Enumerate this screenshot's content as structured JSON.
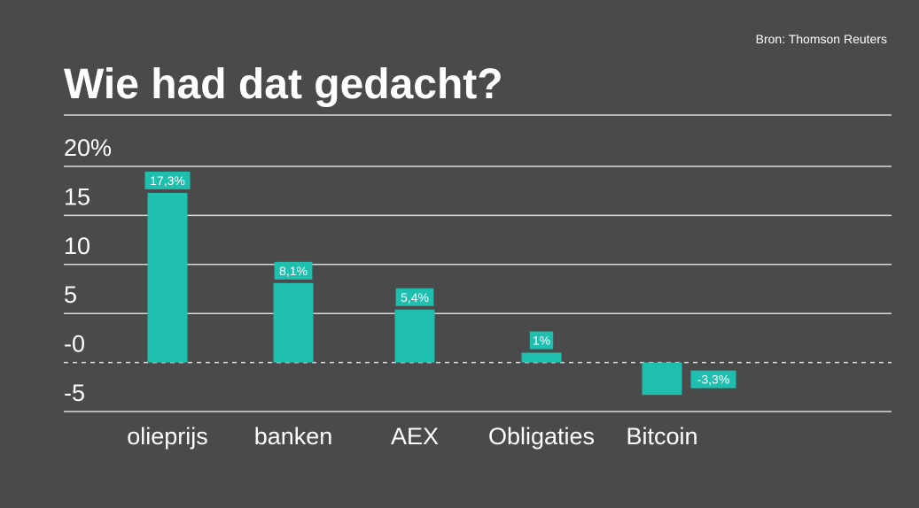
{
  "source": "Bron: Thomson Reuters",
  "title": "Wie had dat gedacht?",
  "colors": {
    "background": "#4a4a4a",
    "bar": "#1ebfae",
    "grid": "#d9d9d9",
    "text": "#ffffff"
  },
  "chart_data": {
    "type": "bar",
    "title": "Wie had dat gedacht?",
    "categories": [
      "olieprijs",
      "banken",
      "AEX",
      "Obligaties",
      "Bitcoin"
    ],
    "values": [
      17.3,
      8.1,
      5.4,
      1,
      -3.3
    ],
    "value_labels": [
      "17,3%",
      "8,1%",
      "5,4%",
      "1%",
      "-3,3%"
    ],
    "y_ticks": [
      20,
      15,
      10,
      5,
      0,
      -5
    ],
    "y_tick_labels": [
      "20%",
      "15",
      "10",
      "5",
      "-0",
      "-5"
    ],
    "ylim": [
      -5,
      20
    ],
    "grid": true,
    "zero_line": "dashed",
    "xlabel": "",
    "ylabel": ""
  }
}
